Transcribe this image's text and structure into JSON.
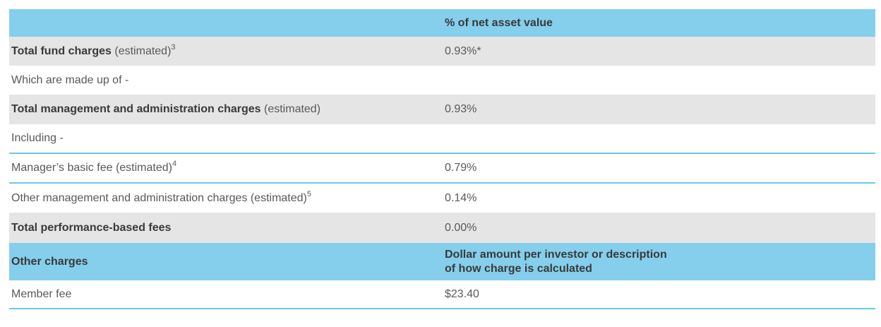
{
  "colors": {
    "header_blue": "#85ceec",
    "row_gray": "#e5e5e6",
    "separator_blue": "#69c8e8",
    "text_dark": "#3a3a3a",
    "text_gray": "#595959"
  },
  "table": {
    "header1": {
      "col1": "",
      "col2": "% of net asset value"
    },
    "rows": [
      {
        "bold": "Total fund charges",
        "normal": " (estimated)",
        "sup": "3",
        "value": "0.93%*"
      },
      {
        "bold": "",
        "normal": "Which are made up of -",
        "sup": "",
        "value": ""
      },
      {
        "bold": "Total management and administration charges",
        "normal": " (estimated)",
        "sup": "",
        "value": "0.93%"
      },
      {
        "bold": "",
        "normal": "Including -",
        "sup": "",
        "value": ""
      },
      {
        "bold": "",
        "normal": "Manager’s basic fee (estimated)",
        "sup": "4",
        "value": "0.79%"
      },
      {
        "bold": "",
        "normal": "Other management and administration charges (estimated)",
        "sup": "5",
        "value": "0.14%"
      },
      {
        "bold": "Total performance-based fees",
        "normal": "",
        "sup": "",
        "value": "0.00%"
      }
    ],
    "header2": {
      "col1": "Other charges",
      "col2_line1": "Dollar amount per investor or description",
      "col2_line2": "of how charge is calculated"
    },
    "rows2": [
      {
        "bold": "",
        "normal": "Member fee",
        "sup": "",
        "value": "$23.40"
      }
    ]
  }
}
